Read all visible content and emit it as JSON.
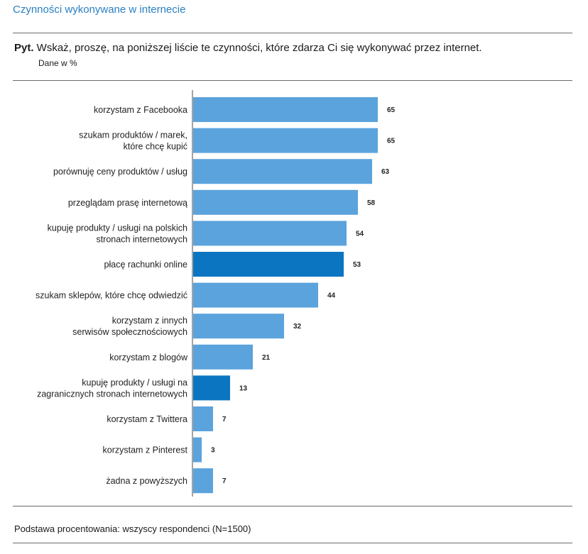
{
  "header": {
    "title": "Czynności wykonywane w internecie",
    "question_prefix": "Pyt.",
    "question_text": " Wskaż, proszę, na poniższej liście te czynności, które zdarza Ci się wykonywać przez internet.",
    "unit_label": "Dane w %"
  },
  "footer": {
    "base_note": "Podstawa procentowania: wszyscy respondenci (N=1500)"
  },
  "colors": {
    "bar_default": "#5ba3dc",
    "bar_highlight": "#0b75c2",
    "bar_highlight_alt": "#1a6fb5",
    "title": "#2a7fc1"
  },
  "chart_data": {
    "type": "bar",
    "orientation": "horizontal",
    "title": "Czynności wykonywane w internecie",
    "xlabel": "",
    "ylabel": "",
    "grid": false,
    "categories": [
      [
        "korzystam z Facebooka"
      ],
      [
        "szukam produktów / marek,",
        "które chcę kupić"
      ],
      [
        "porównuję ceny produktów / usług"
      ],
      [
        "przeglądam prasę internetową"
      ],
      [
        "kupuję produkty / usługi na polskich",
        "stronach internetowych"
      ],
      [
        "płacę rachunki online"
      ],
      [
        "szukam sklepów, które chcę odwiedzić"
      ],
      [
        "korzystam z innych",
        "serwisów społecznościowych"
      ],
      [
        "korzystam z blogów"
      ],
      [
        "kupuję produkty / usługi na",
        "zagranicznych stronach internetowych"
      ],
      [
        "korzystam z Twittera"
      ],
      [
        "korzystam z Pinterest"
      ],
      [
        "żadna z powyższych"
      ]
    ],
    "values": [
      65,
      65,
      63,
      58,
      54,
      53,
      44,
      32,
      21,
      13,
      7,
      3,
      7
    ],
    "value_labels": [
      "65",
      "65",
      "63",
      "58",
      "54",
      "53",
      "44",
      "32",
      "21",
      "13",
      "7",
      "3",
      "7"
    ],
    "highlight": [
      false,
      false,
      false,
      false,
      false,
      true,
      false,
      false,
      false,
      true,
      false,
      false,
      false
    ],
    "xlim": [
      0,
      100
    ]
  }
}
